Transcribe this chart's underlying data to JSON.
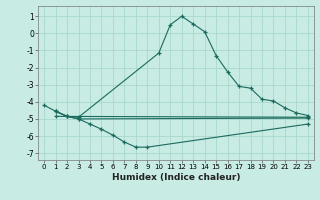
{
  "xlabel": "Humidex (Indice chaleur)",
  "ylabel": "",
  "bg_color": "#c8ebe4",
  "line_color": "#1a6b5e",
  "grid_color": "#aad9cc",
  "xlim": [
    -0.5,
    23.5
  ],
  "ylim": [
    -7.4,
    1.6
  ],
  "yticks": [
    1,
    0,
    -1,
    -2,
    -3,
    -4,
    -5,
    -6,
    -7
  ],
  "xticks": [
    0,
    1,
    2,
    3,
    4,
    5,
    6,
    7,
    8,
    9,
    10,
    11,
    12,
    13,
    14,
    15,
    16,
    17,
    18,
    19,
    20,
    21,
    22,
    23
  ],
  "lines": [
    {
      "x": [
        0,
        1,
        2,
        3,
        10,
        11,
        12,
        13,
        14,
        15,
        16,
        17,
        18,
        19,
        20,
        21,
        22,
        23
      ],
      "y": [
        -4.2,
        -4.55,
        -4.85,
        -4.9,
        -1.15,
        0.5,
        1.0,
        0.55,
        0.1,
        -1.3,
        -2.25,
        -3.1,
        -3.2,
        -3.85,
        -3.95,
        -4.35,
        -4.65,
        -4.8
      ]
    },
    {
      "x": [
        1,
        2,
        3,
        4,
        5,
        6,
        7,
        8,
        9,
        23
      ],
      "y": [
        -4.55,
        -4.85,
        -5.0,
        -5.3,
        -5.6,
        -5.95,
        -6.35,
        -6.65,
        -6.65,
        -5.3
      ]
    },
    {
      "x": [
        1,
        2,
        3,
        23
      ],
      "y": [
        -4.55,
        -4.85,
        -5.0,
        -4.95
      ]
    },
    {
      "x": [
        1,
        23
      ],
      "y": [
        -4.85,
        -4.9
      ]
    }
  ]
}
